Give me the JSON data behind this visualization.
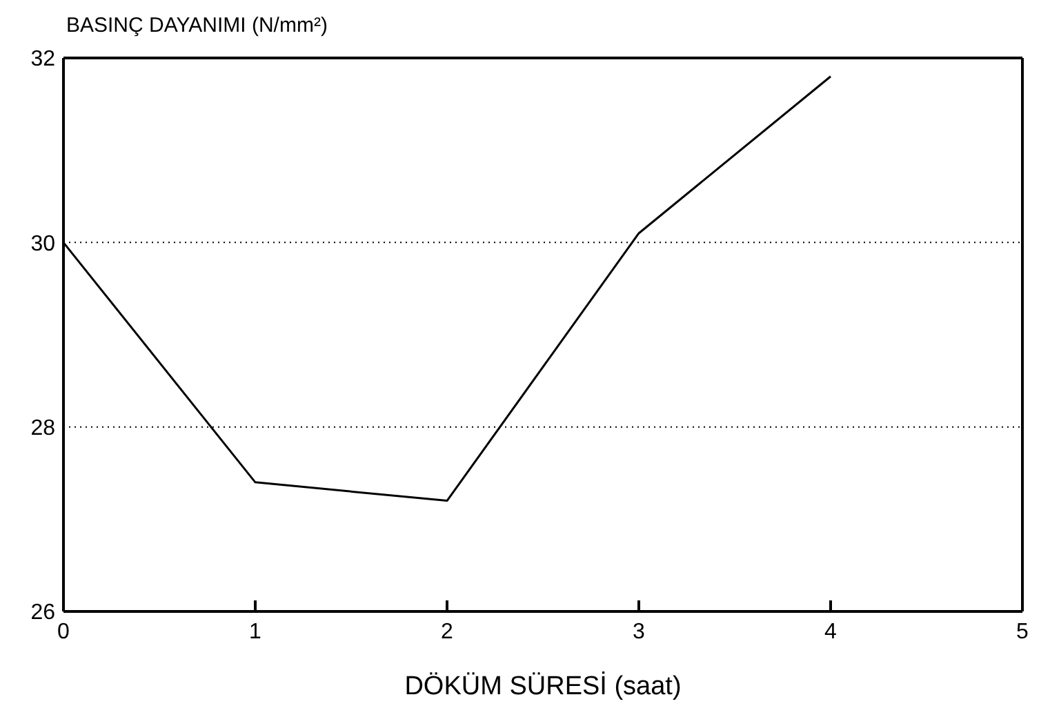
{
  "chart_data": {
    "type": "line",
    "ylabel": "BASINÇ DAYANIMI (N/mm²)",
    "xlabel": "DÖKÜM SÜRESİ (saat)",
    "x": [
      0,
      1,
      2,
      3,
      4
    ],
    "series": [
      {
        "color": "#000000",
        "values": [
          30,
          27.4,
          27.2,
          30.1,
          31.8
        ]
      }
    ],
    "xlim": [
      0,
      5
    ],
    "xticks": [
      0,
      1,
      2,
      3,
      4,
      5
    ],
    "ylim": [
      26,
      32
    ],
    "yticks": [
      26,
      28,
      30,
      32
    ],
    "grid": "y",
    "legend": false,
    "marker": "none",
    "line_style": "solid"
  }
}
